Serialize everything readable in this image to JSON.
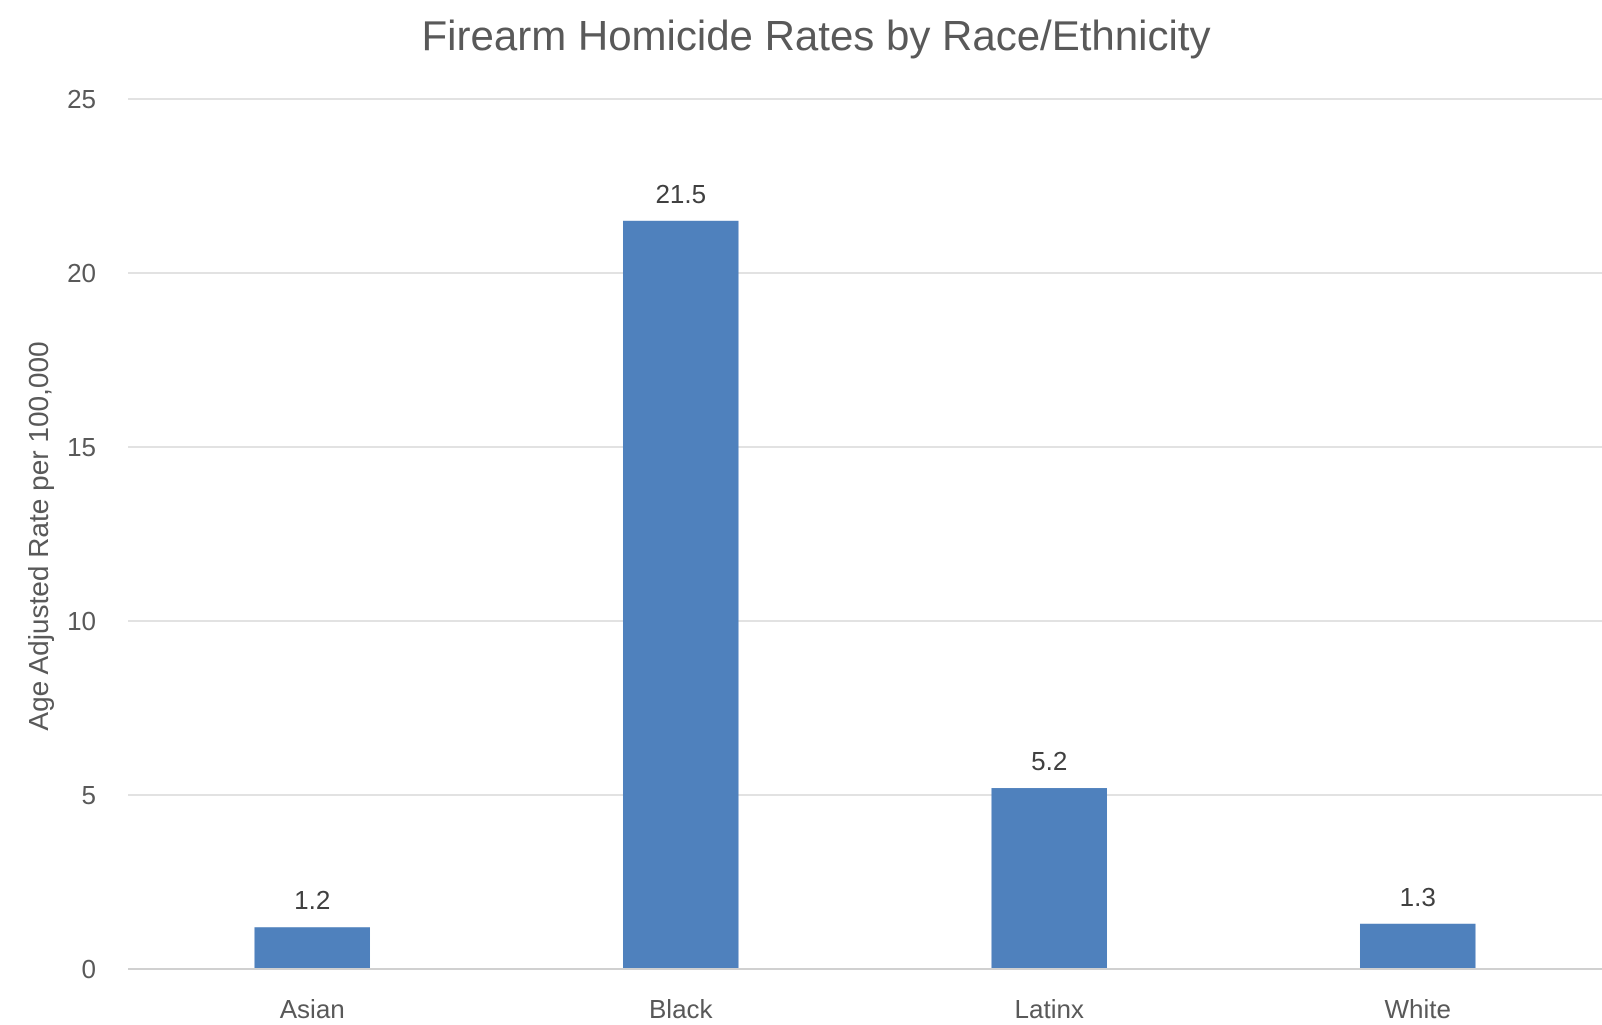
{
  "chart_data": {
    "type": "bar",
    "title": "Firearm  Homicide Rates by Race/Ethnicity",
    "xlabel": "",
    "ylabel": "Age Adjusted Rate per 100,000",
    "categories": [
      "Asian",
      "Black",
      "Latinx",
      "White"
    ],
    "values": [
      1.2,
      21.5,
      5.2,
      1.3
    ],
    "data_labels": [
      "1.2",
      "21.5",
      "5.2",
      "1.3"
    ],
    "ylim": [
      0,
      25
    ],
    "yticks": [
      0,
      5,
      10,
      15,
      20,
      25
    ],
    "grid": true,
    "legend": "none",
    "bar_color": "#4f81bd"
  }
}
